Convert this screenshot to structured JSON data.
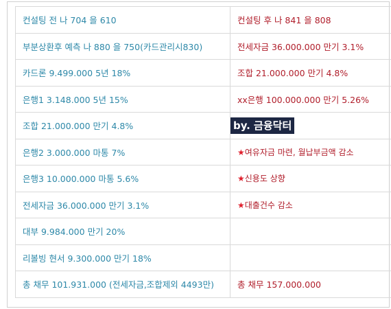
{
  "rows": [
    {
      "left": "컨설팅 전 나 704 을 610",
      "right": "컨설팅 후 나 841 을 808"
    },
    {
      "left": "부분상환후 예측 나 880 을 750(카드관리시830)",
      "right": "전세자금 36.000.000  만기  3.1%"
    },
    {
      "left": "카드론  9.499.000  5년 18%",
      "right": "조합       21.000.000  만기 4.8%"
    },
    {
      "left": "은행1   3.148.000  5년 15%",
      "right": "xx은행  100.000.000  만기 5.26%"
    },
    {
      "left": "조합   21.000.000  만기 4.8%",
      "right": ""
    },
    {
      "left": "은행2  3.000.000   마통 7%",
      "right": "여유자금 마련, 월납부금액 감소"
    },
    {
      "left": "은행3  10.000.000  마통 5.6%",
      "right": "신용도 상향"
    },
    {
      "left": "전세자금  36.000.000  만기  3.1%",
      "right": "대출건수 감소"
    },
    {
      "left": "대부   9.984.000  만기  20%",
      "right": ""
    },
    {
      "left": "리볼빙 현서 9.300.000  만기 18%",
      "right": ""
    },
    {
      "left": "총 채무 101.931.000 (전세자금,조합제외 4493만)",
      "right": "총 채무 157.000.000"
    }
  ],
  "watermark": "by. 금융닥터",
  "star_glyph": "★",
  "colors": {
    "left_text": "#2d88a8",
    "right_text": "#b01d2a",
    "star": "#e0212e",
    "watermark_bg": "#1d2743"
  }
}
